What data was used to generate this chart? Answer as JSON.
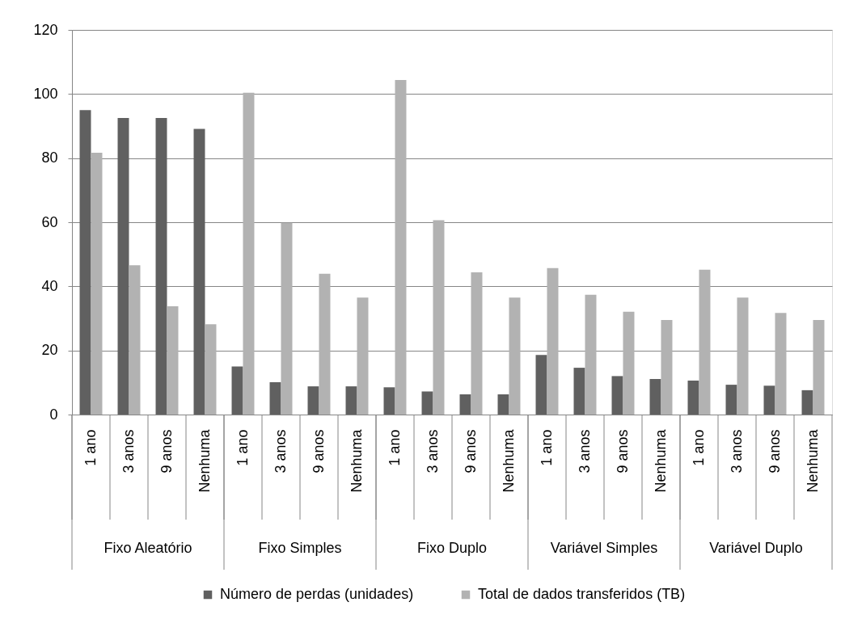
{
  "chart_data": {
    "type": "bar",
    "categories": [
      "1 ano",
      "3 anos",
      "9 anos",
      "Nenhuma",
      "1 ano",
      "3 anos",
      "9 anos",
      "Nenhuma",
      "1 ano",
      "3 anos",
      "9 anos",
      "Nenhuma",
      "1 ano",
      "3 anos",
      "9 anos",
      "Nenhuma",
      "1 ano",
      "3 anos",
      "9 anos",
      "Nenhuma"
    ],
    "series": [
      {
        "name": "Número de perdas (unidades)",
        "color": "#606060",
        "values": [
          95.0,
          92.5,
          92.5,
          89.1,
          15.0,
          10.1,
          8.8,
          8.8,
          8.5,
          7.2,
          6.3,
          6.3,
          18.6,
          14.6,
          12.0,
          11.1,
          10.6,
          9.3,
          9.0,
          7.6
        ]
      },
      {
        "name": "Total de dados transferidos (TB)",
        "color": "#b2b2b2",
        "values": [
          81.7,
          46.6,
          33.8,
          28.2,
          100.4,
          59.8,
          43.9,
          36.5,
          104.4,
          60.6,
          44.4,
          36.5,
          45.7,
          37.4,
          32.1,
          29.5,
          45.2,
          36.5,
          31.7,
          29.5
        ]
      }
    ],
    "ylim": [
      0,
      120
    ],
    "yticks": [
      0,
      20,
      40,
      60,
      80,
      100,
      120
    ],
    "grid": "y",
    "legend": "bottom",
    "annotations": [
      "Fixo Aleatório",
      "Fixo Simples",
      "Fixo Duplo",
      "Variável Simples",
      "Variável Duplo"
    ]
  }
}
